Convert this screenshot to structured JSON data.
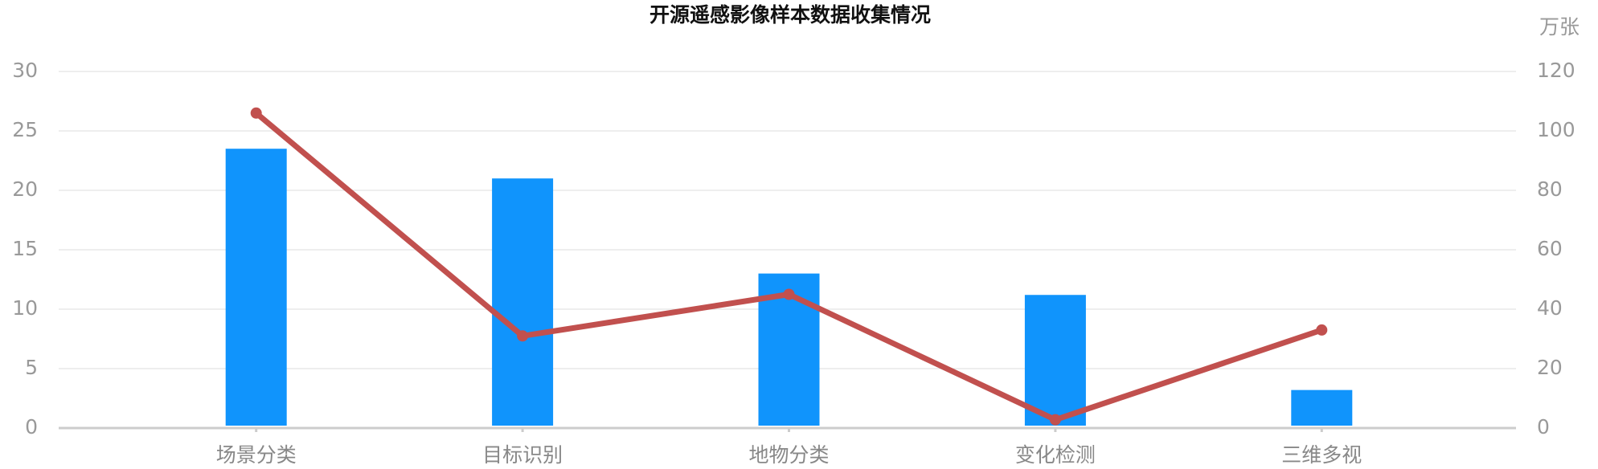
{
  "chart_data": {
    "type": "bar-line",
    "title": "开源遥感影像样本数据收集情况",
    "y2label": "万张",
    "categories": [
      "场景分类",
      "目标识别",
      "地物分类",
      "变化检测",
      "三维多视"
    ],
    "series": [
      {
        "type": "bar",
        "color": "#1094fc",
        "values": [
          23.5,
          21,
          13,
          11.2,
          3.2
        ]
      },
      {
        "type": "line",
        "axis": "y2",
        "color": "#c1504e",
        "values": [
          106,
          31,
          45,
          2.8,
          33
        ]
      }
    ],
    "ylim": [
      0,
      30
    ],
    "yticks": [
      0,
      5,
      10,
      15,
      20,
      25,
      30
    ],
    "y2lim": [
      0,
      120
    ],
    "y2ticks": [
      0,
      20,
      40,
      60,
      80,
      100,
      120
    ],
    "grid": true
  }
}
